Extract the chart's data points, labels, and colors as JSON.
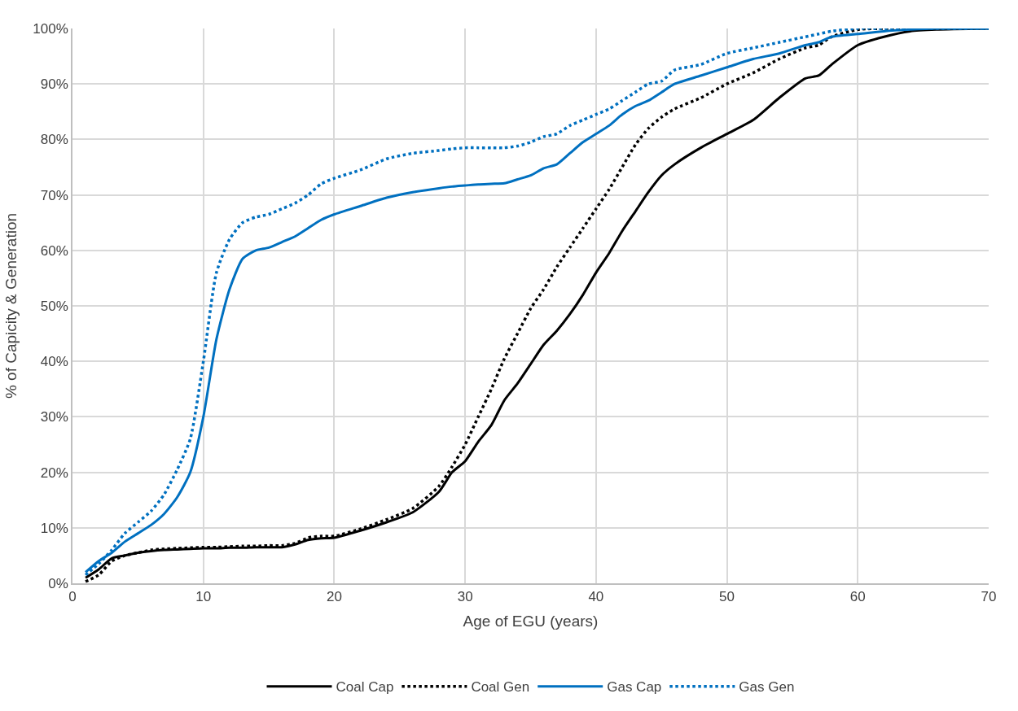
{
  "chart_data": {
    "type": "line",
    "xlabel": "Age of EGU (years)",
    "ylabel": "% of Capicity & Generation",
    "x": [
      1,
      2,
      3,
      4,
      5,
      6,
      7,
      8,
      9,
      10,
      11,
      12,
      13,
      14,
      15,
      16,
      17,
      18,
      19,
      20,
      22,
      24,
      26,
      28,
      29,
      30,
      31,
      32,
      33,
      34,
      35,
      36,
      37,
      38,
      39,
      40,
      41,
      42,
      43,
      44,
      45,
      46,
      48,
      50,
      52,
      54,
      56,
      57,
      58,
      60,
      62,
      64,
      66,
      70
    ],
    "series": [
      {
        "name": "Coal Cap",
        "color": "#000000",
        "line_style": "solid",
        "values": [
          1,
          2.5,
          4.5,
          5,
          5.5,
          5.8,
          6,
          6.1,
          6.2,
          6.3,
          6.3,
          6.4,
          6.4,
          6.5,
          6.5,
          6.5,
          7,
          7.8,
          8.1,
          8.2,
          9.5,
          11,
          12.8,
          16.5,
          20,
          22,
          25.5,
          28.5,
          33,
          36,
          39.5,
          43,
          45.5,
          48.5,
          52,
          56,
          59.5,
          63.5,
          67,
          70.5,
          73.5,
          75.5,
          78.5,
          81,
          83.5,
          87.5,
          91,
          91.5,
          93.5,
          97,
          98.5,
          99.5,
          99.8,
          100
        ]
      },
      {
        "name": "Coal Gen",
        "color": "#000000",
        "line_style": "dotted",
        "values": [
          0.3,
          1.5,
          4,
          5,
          5.5,
          6,
          6.2,
          6.3,
          6.4,
          6.5,
          6.5,
          6.6,
          6.7,
          6.7,
          6.8,
          6.8,
          7.2,
          8.2,
          8.5,
          8.5,
          9.8,
          11.5,
          13.5,
          17.5,
          21,
          25,
          30,
          35,
          40.5,
          45,
          49.5,
          53,
          57,
          60.5,
          64,
          67.5,
          71,
          75,
          79,
          82,
          84,
          85.5,
          87.5,
          90,
          92,
          94.5,
          96.5,
          97,
          98.5,
          99.8,
          100,
          100,
          100,
          100
        ]
      },
      {
        "name": "Gas Cap",
        "color": "#0070c0",
        "line_style": "solid",
        "values": [
          2,
          4,
          5.5,
          7.5,
          9,
          10.5,
          12.5,
          15.5,
          20,
          30,
          44,
          53,
          58.5,
          60,
          60.5,
          61.5,
          62.5,
          64,
          65.5,
          66.5,
          68,
          69.5,
          70.5,
          71.2,
          71.5,
          71.7,
          71.9,
          72,
          72.1,
          72.8,
          73.5,
          74.8,
          75.5,
          77.5,
          79.5,
          81,
          82.5,
          84.5,
          86,
          87,
          88.5,
          90,
          91.5,
          93,
          94.5,
          95.5,
          97,
          97.5,
          98.5,
          99,
          99.5,
          99.8,
          100,
          100
        ]
      },
      {
        "name": "Gas Gen",
        "color": "#0070c0",
        "line_style": "dotted",
        "values": [
          1.5,
          3.5,
          6,
          9,
          11,
          13,
          16,
          20.5,
          26,
          40,
          56,
          62,
          65,
          66,
          66.5,
          67.5,
          68.5,
          70,
          72,
          73,
          74.5,
          76.5,
          77.5,
          78,
          78.3,
          78.5,
          78.5,
          78.5,
          78.5,
          78.8,
          79.5,
          80.5,
          81,
          82.5,
          83.5,
          84.5,
          85.5,
          87,
          88.5,
          90,
          90.5,
          92.5,
          93.5,
          95.5,
          96.5,
          97.5,
          98.5,
          99,
          99.5,
          100,
          100,
          100,
          100,
          100
        ]
      }
    ],
    "xlim": [
      0,
      70
    ],
    "xticks": [
      0,
      10,
      20,
      30,
      40,
      50,
      60,
      70
    ],
    "ylim": [
      0,
      100
    ],
    "yticks": [
      {
        "value": 0,
        "label": "0%"
      },
      {
        "value": 10,
        "label": "10%"
      },
      {
        "value": 20,
        "label": "20%"
      },
      {
        "value": 30,
        "label": "30%"
      },
      {
        "value": 40,
        "label": "40%"
      },
      {
        "value": 50,
        "label": "50%"
      },
      {
        "value": 60,
        "label": "60%"
      },
      {
        "value": 70,
        "label": "70%"
      },
      {
        "value": 80,
        "label": "80%"
      },
      {
        "value": 90,
        "label": "90%"
      },
      {
        "value": 100,
        "label": "100%"
      }
    ],
    "grid": true,
    "legend": "bottom",
    "marker": "none"
  }
}
